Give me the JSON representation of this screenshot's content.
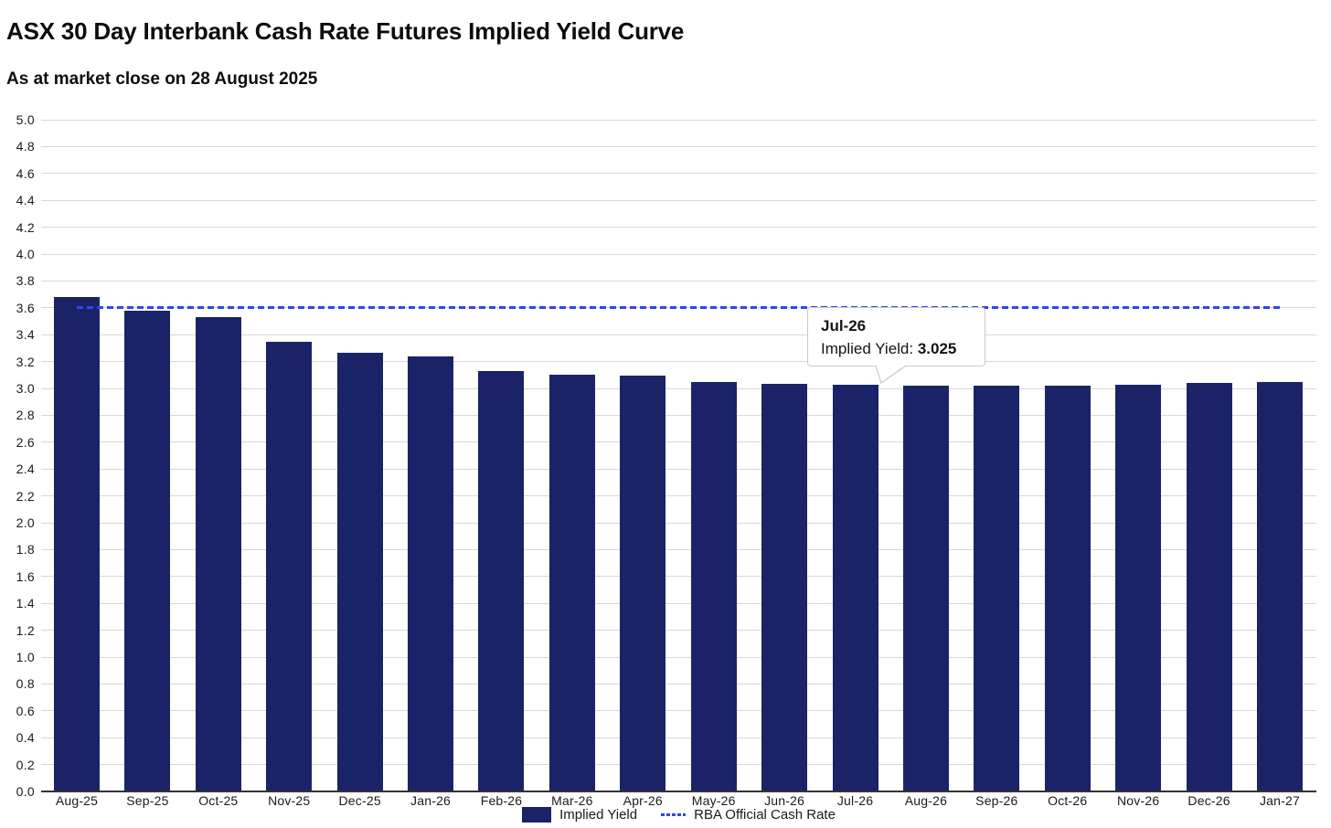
{
  "chart_data": {
    "type": "bar",
    "title": "ASX 30 Day Interbank Cash Rate Futures Implied Yield Curve",
    "subtitle": "As at market close on 28 August 2025",
    "categories": [
      "Aug-25",
      "Sep-25",
      "Oct-25",
      "Nov-25",
      "Dec-25",
      "Jan-26",
      "Feb-26",
      "Mar-26",
      "Apr-26",
      "May-26",
      "Jun-26",
      "Jul-26",
      "Aug-26",
      "Sep-26",
      "Oct-26",
      "Nov-26",
      "Dec-26",
      "Jan-27"
    ],
    "series": [
      {
        "name": "Implied Yield",
        "type": "bar",
        "color": "#1b2368",
        "values": [
          3.68,
          3.58,
          3.53,
          3.345,
          3.265,
          3.24,
          3.13,
          3.105,
          3.095,
          3.05,
          3.035,
          3.025,
          3.02,
          3.02,
          3.02,
          3.03,
          3.04,
          3.045
        ]
      },
      {
        "name": "RBA Official Cash Rate",
        "type": "dashed-line",
        "color": "#2c46f0",
        "value": 3.6
      }
    ],
    "ylim": [
      0.0,
      5.0
    ],
    "ytick_step": 0.2,
    "grid": true,
    "legend_position": "bottom-center"
  },
  "tooltip": {
    "category": "Jul-26",
    "label": "Implied Yield: ",
    "value": "3.025"
  },
  "colors": {
    "bar": "#1b2368",
    "rba_line": "#2c46f0",
    "gridline": "#d8d8d8",
    "axis_line": "#333333",
    "text": "#1a1a1a",
    "tooltip_border": "#c9c9c9",
    "background": "#ffffff"
  }
}
